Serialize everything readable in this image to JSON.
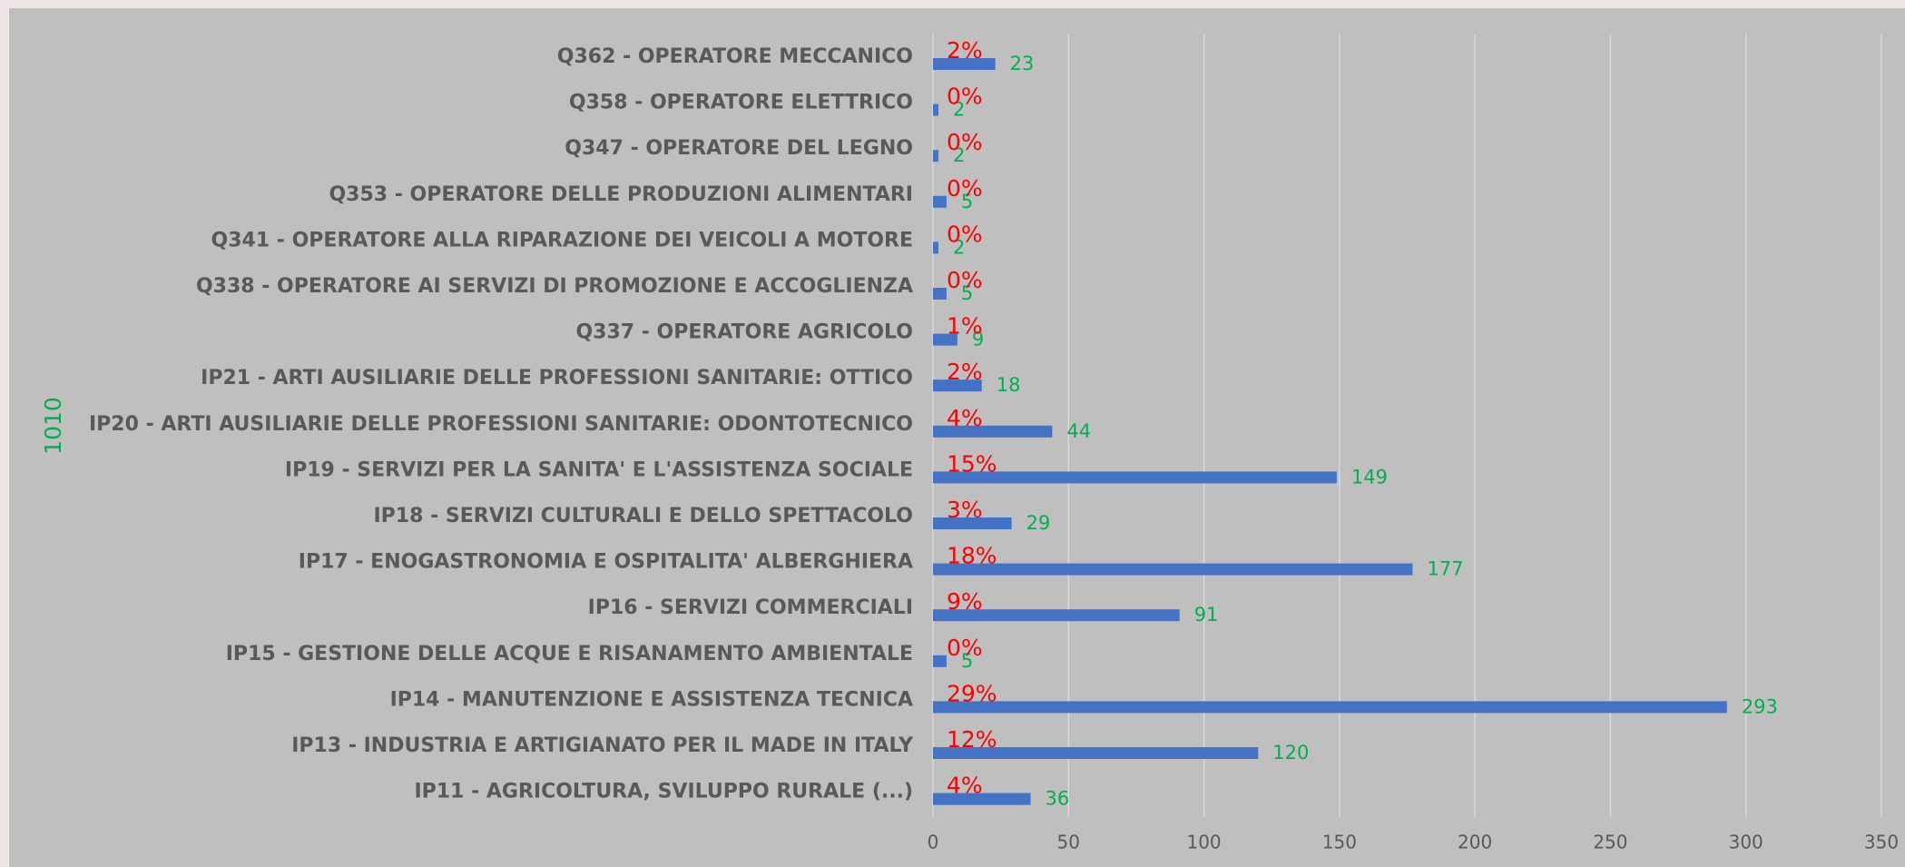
{
  "chart_data": {
    "type": "barh",
    "y_axis_label": "1010",
    "categories": [
      "Q362 - OPERATORE MECCANICO",
      "Q358 - OPERATORE ELETTRICO",
      "Q347 - OPERATORE DEL LEGNO",
      "Q353 - OPERATORE DELLE PRODUZIONI ALIMENTARI",
      "Q341 - OPERATORE ALLA RIPARAZIONE DEI VEICOLI A MOTORE",
      "Q338 - OPERATORE AI SERVIZI DI PROMOZIONE E ACCOGLIENZA",
      "Q337 - OPERATORE AGRICOLO",
      "IP21 - ARTI AUSILIARIE DELLE PROFESSIONI SANITARIE: OTTICO",
      "IP20 - ARTI AUSILIARIE DELLE PROFESSIONI SANITARIE: ODONTOTECNICO",
      "IP19 - SERVIZI PER LA SANITA' E L'ASSISTENZA SOCIALE",
      "IP18 - SERVIZI CULTURALI E DELLO SPETTACOLO",
      "IP17 - ENOGASTRONOMIA E OSPITALITA' ALBERGHIERA",
      "IP16 - SERVIZI COMMERCIALI",
      "IP15 - GESTIONE DELLE ACQUE E RISANAMENTO AMBIENTALE",
      "IP14 - MANUTENZIONE E ASSISTENZA TECNICA",
      "IP13 - INDUSTRIA E ARTIGIANATO PER IL MADE IN ITALY",
      "IP11 - AGRICOLTURA, SVILUPPO RURALE (...)"
    ],
    "values": [
      23,
      2,
      2,
      5,
      2,
      5,
      9,
      18,
      44,
      149,
      29,
      177,
      91,
      5,
      293,
      120,
      36
    ],
    "percent_labels": [
      "2%",
      "0%",
      "0%",
      "0%",
      "0%",
      "0%",
      "1%",
      "2%",
      "4%",
      "15%",
      "3%",
      "18%",
      "9%",
      "0%",
      "29%",
      "12%",
      "4%"
    ],
    "color": "#4472c4",
    "value_label_color": "#00b050",
    "percent_label_color": "#ff0000",
    "xlim": [
      0,
      350
    ],
    "xticks": [
      0,
      50,
      100,
      150,
      200,
      250,
      300,
      350
    ],
    "grid": true
  }
}
